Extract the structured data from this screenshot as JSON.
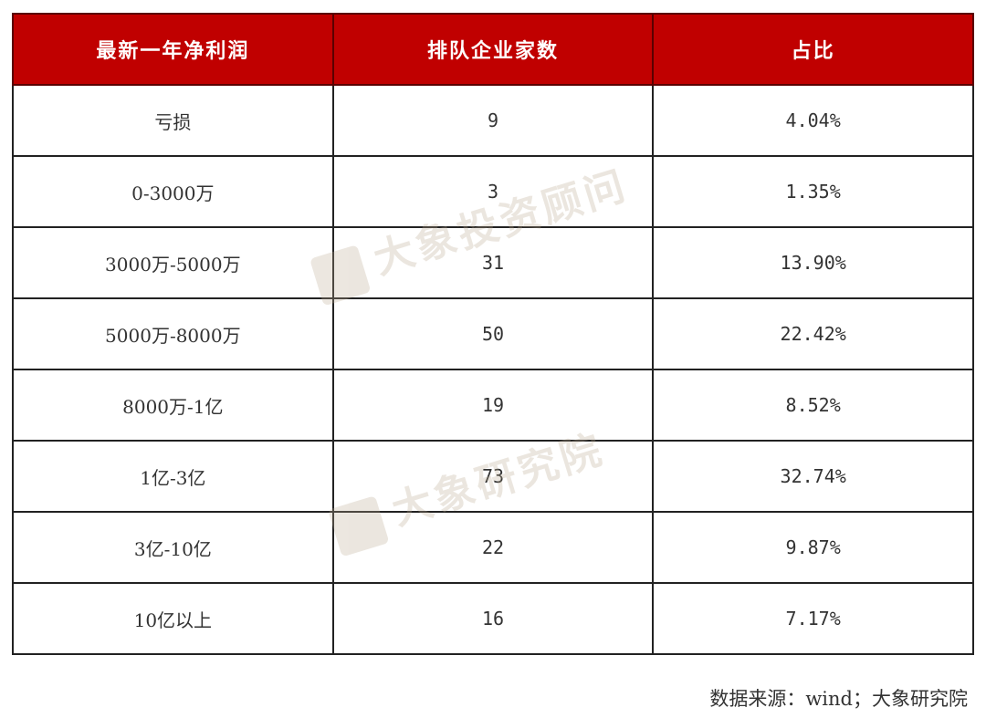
{
  "chart_data": {
    "type": "table",
    "columns": [
      "最新一年净利润",
      "排队企业家数",
      "占比"
    ],
    "rows": [
      [
        "亏损",
        "9",
        "4.04%"
      ],
      [
        "0-3000万",
        "3",
        "1.35%"
      ],
      [
        "3000万-5000万",
        "31",
        "13.90%"
      ],
      [
        "5000万-8000万",
        "50",
        "22.42%"
      ],
      [
        "8000万-1亿",
        "19",
        "8.52%"
      ],
      [
        "1亿-3亿",
        "73",
        "32.74%"
      ],
      [
        "3亿-10亿",
        "22",
        "9.87%"
      ],
      [
        "10亿以上",
        "16",
        "7.17%"
      ]
    ],
    "header_color": "#c00000"
  },
  "watermarks": [
    "大象投资顾问",
    "大象研究院"
  ],
  "source": "数据来源：wind；大象研究院"
}
